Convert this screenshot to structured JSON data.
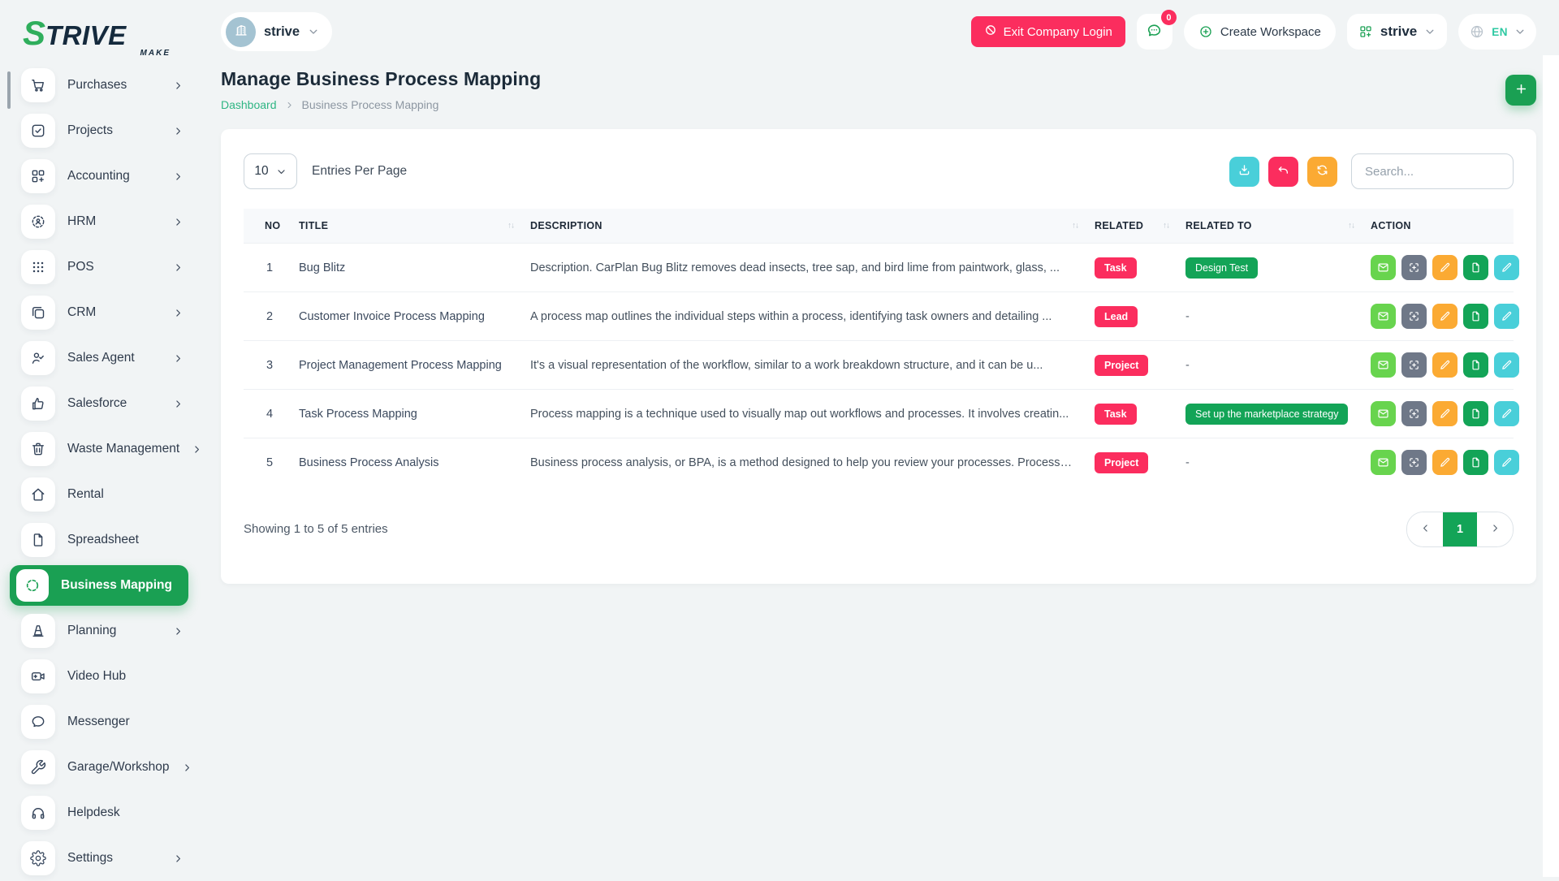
{
  "colors": {
    "page_bg": "#f1f4f5",
    "primary_green": "#1aa053",
    "badge_green": "#13a457",
    "link_green": "#2eb583",
    "lang_teal": "#2dc9a2",
    "pink": "#fb2d5e",
    "orange": "#fbaa33",
    "cyan": "#49cfd9",
    "mail_green": "#68d44e",
    "slate_gray": "#6f7888",
    "sidebar_text": "#2f3b4c"
  },
  "brand": {
    "logo_green": "S",
    "logo_dark": "TRIVE",
    "tagline": "MAKE"
  },
  "topbar": {
    "workspace_label": "strive",
    "exit_label": "Exit Company Login",
    "chat_badge": "0",
    "create_label": "Create Workspace",
    "company_label": "strive",
    "language_label": "EN"
  },
  "sidebar": {
    "items": [
      {
        "label": "Purchases",
        "icon": "cart-icon",
        "has_submenu": true
      },
      {
        "label": "Projects",
        "icon": "checkbox-icon",
        "has_submenu": true
      },
      {
        "label": "Accounting",
        "icon": "grid-plus-icon",
        "has_submenu": true
      },
      {
        "label": "HRM",
        "icon": "person-target-icon",
        "has_submenu": true
      },
      {
        "label": "POS",
        "icon": "dots-grid-icon",
        "has_submenu": true
      },
      {
        "label": "CRM",
        "icon": "copy-icon",
        "has_submenu": true
      },
      {
        "label": "Sales Agent",
        "icon": "person-check-icon",
        "has_submenu": true
      },
      {
        "label": "Salesforce",
        "icon": "thumbs-up-icon",
        "has_submenu": true
      },
      {
        "label": "Waste Management",
        "icon": "trash-icon",
        "has_submenu": true
      },
      {
        "label": "Rental",
        "icon": "home-icon",
        "has_submenu": false
      },
      {
        "label": "Spreadsheet",
        "icon": "file-outline-icon",
        "has_submenu": false
      },
      {
        "label": "Business Mapping",
        "icon": "dashed-circle-icon",
        "has_submenu": false,
        "active": true
      },
      {
        "label": "Planning",
        "icon": "cone-icon",
        "has_submenu": true
      },
      {
        "label": "Video Hub",
        "icon": "video-icon",
        "has_submenu": false
      },
      {
        "label": "Messenger",
        "icon": "chat-bubble-icon",
        "has_submenu": false
      },
      {
        "label": "Garage/Workshop",
        "icon": "wrench-icon",
        "has_submenu": true
      },
      {
        "label": "Helpdesk",
        "icon": "headset-icon",
        "has_submenu": false
      },
      {
        "label": "Settings",
        "icon": "gear-icon",
        "has_submenu": true
      }
    ]
  },
  "page": {
    "title": "Manage Business Process Mapping",
    "breadcrumb_home": "Dashboard",
    "breadcrumb_current": "Business Process Mapping"
  },
  "table": {
    "entries_value": "10",
    "entries_label": "Entries Per Page",
    "search_placeholder": "Search...",
    "columns": [
      {
        "label": "NO",
        "sortable": false
      },
      {
        "label": "TITLE",
        "sortable": true
      },
      {
        "label": "DESCRIPTION",
        "sortable": true
      },
      {
        "label": "RELATED",
        "sortable": true
      },
      {
        "label": "RELATED TO",
        "sortable": true
      },
      {
        "label": "ACTION",
        "sortable": false
      }
    ],
    "rows": [
      {
        "no": "1",
        "title": "Bug Blitz",
        "description": "Description. CarPlan Bug Blitz removes dead insects, tree sap, and bird lime from paintwork, glass, ...",
        "related": "Task",
        "related_to": "Design Test"
      },
      {
        "no": "2",
        "title": "Customer Invoice Process Mapping",
        "description": "A process map outlines the individual steps within a process, identifying task owners and detailing ...",
        "related": "Lead",
        "related_to": "-"
      },
      {
        "no": "3",
        "title": "Project Management Process Mapping",
        "description": "It's a visual representation of the workflow, similar to a work breakdown structure, and it can be u...",
        "related": "Project",
        "related_to": "-"
      },
      {
        "no": "4",
        "title": "Task Process Mapping",
        "description": "Process mapping is a technique used to visually map out workflows and processes. It involves creatin...",
        "related": "Task",
        "related_to": "Set up the marketplace strategy"
      },
      {
        "no": "5",
        "title": "Business Process Analysis",
        "description": "Business process analysis, or BPA, is a method designed to help you review your processes. Processes...",
        "related": "Project",
        "related_to": "-"
      }
    ],
    "actions": [
      {
        "name": "mail-action-button",
        "icon": "mail-icon",
        "color": "#68d44e"
      },
      {
        "name": "scan-action-button",
        "icon": "scan-icon",
        "color": "#6f7888"
      },
      {
        "name": "edit-action-button",
        "icon": "pencil-icon",
        "color": "#fbaa33"
      },
      {
        "name": "file-action-button",
        "icon": "file-icon",
        "color": "#13a457"
      },
      {
        "name": "pen-action-button",
        "icon": "pen-icon",
        "color": "#49cfd9"
      }
    ],
    "showing_text": "Showing 1 to 5 of 5 entries",
    "current_page": "1"
  }
}
